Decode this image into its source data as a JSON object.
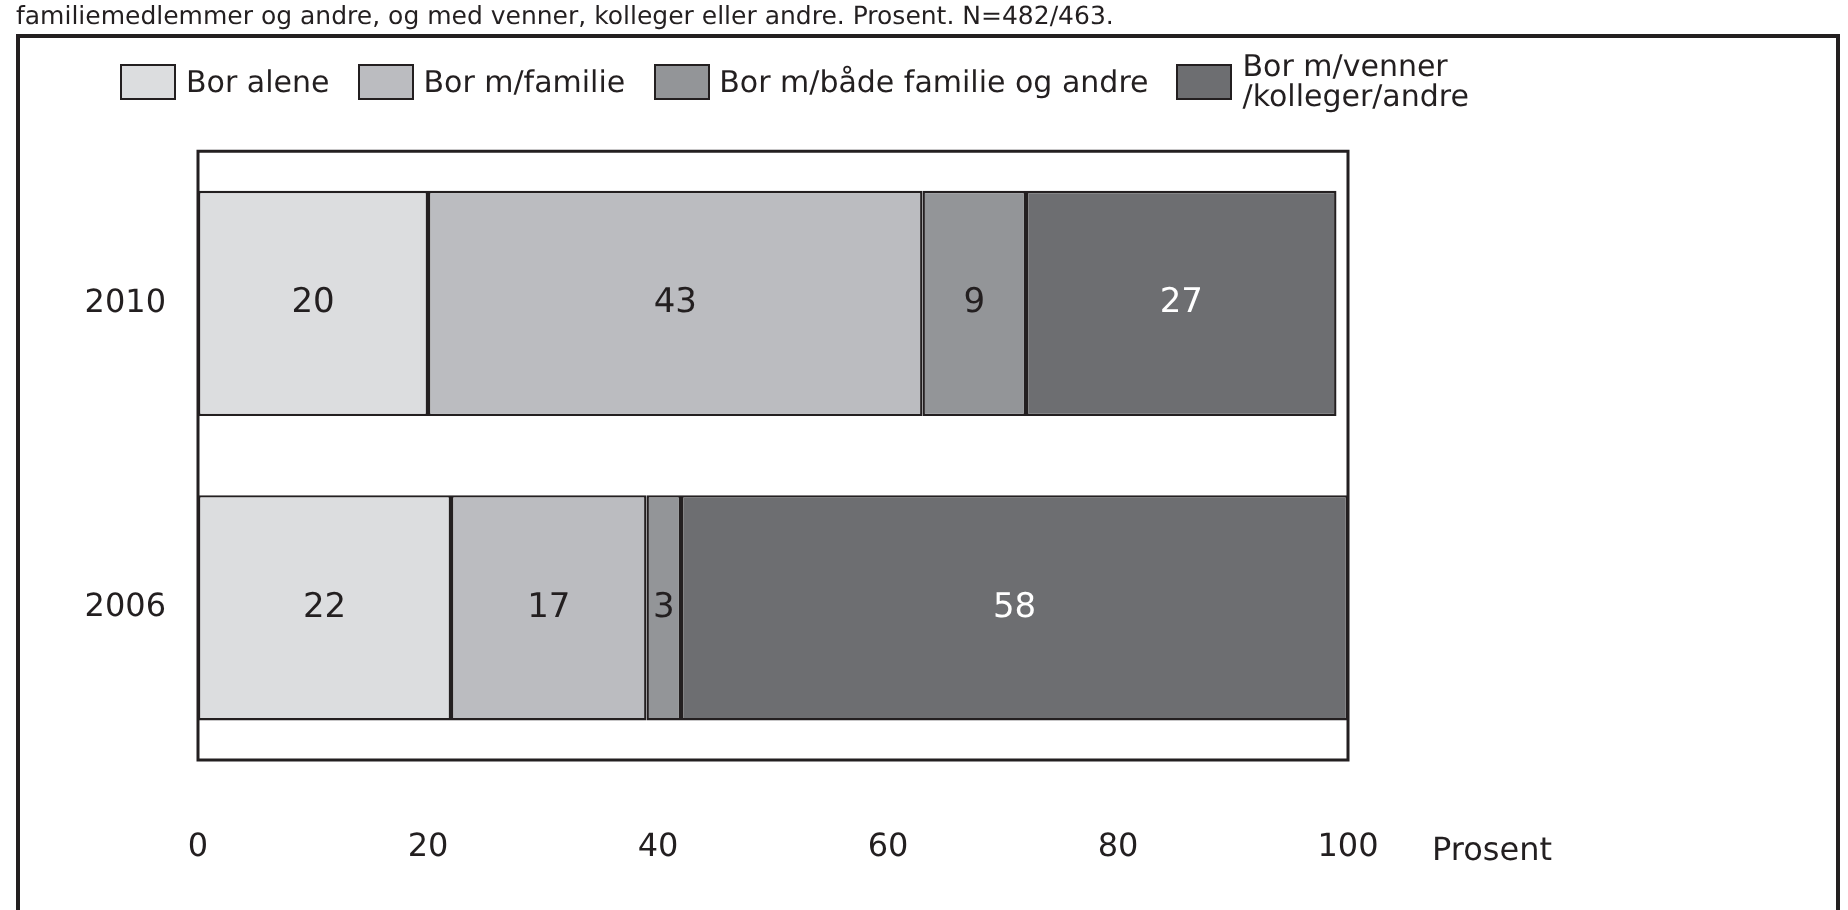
{
  "chart_data": {
    "type": "bar",
    "orientation": "horizontal",
    "stacked": true,
    "title": "familiemedlemmer og andre, og med venner, kolleger eller andre. Prosent. N=482/463.",
    "xlabel": "Prosent",
    "categories": [
      "2010",
      "2006"
    ],
    "series": [
      {
        "name": "Bor alene",
        "color": "#dcdddf",
        "values": [
          20,
          22
        ]
      },
      {
        "name": "Bor m/familie",
        "color": "#bbbcc0",
        "values": [
          43,
          17
        ]
      },
      {
        "name": "Bor m/både familie og andre",
        "color": "#939598",
        "values": [
          9,
          3
        ]
      },
      {
        "name": "Bor m/venner /kolleger/andre",
        "color": "#6d6e71",
        "values": [
          27,
          58
        ]
      }
    ],
    "xlim": [
      0,
      100
    ],
    "xticks": [
      0,
      20,
      40,
      60,
      80,
      100
    ],
    "data_labels": true,
    "legend": "top",
    "grid": false
  }
}
